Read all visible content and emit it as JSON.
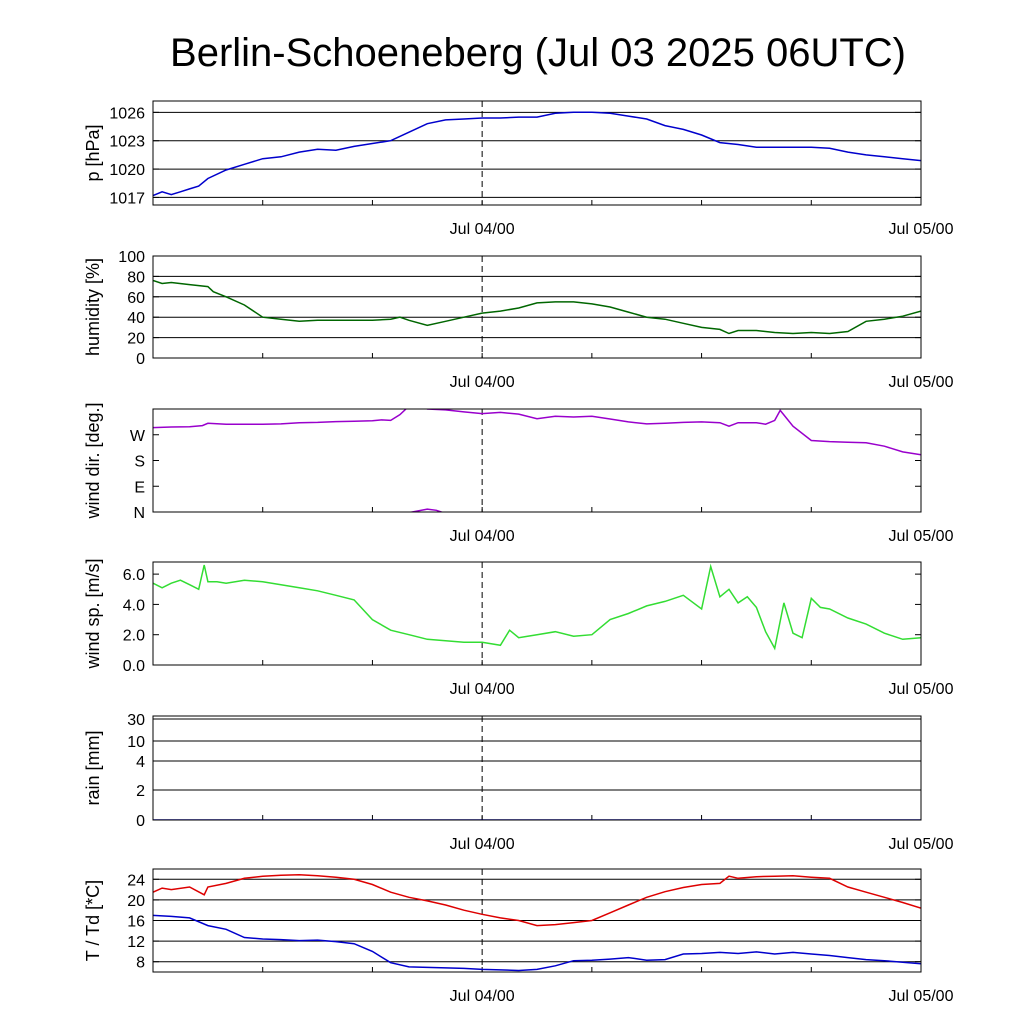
{
  "chart_data": {
    "title": "Berlin-Schoeneberg (Jul 03 2025 06UTC)",
    "x_range_hours": [
      0,
      42
    ],
    "x_tick_labels": [
      {
        "h": 18,
        "label": "Jul 04/00"
      },
      {
        "h": 42,
        "label": "Jul 05/00"
      }
    ],
    "midnight_marker_hour": 18,
    "panels": [
      {
        "id": "pressure",
        "type": "line",
        "ylabel": "p [hPa]",
        "ylim": [
          1016.2,
          1027.2
        ],
        "y_scale": "linear",
        "gridlines": [
          1017,
          1020,
          1023,
          1026
        ],
        "yticks": [
          {
            "v": 1017,
            "label": "1017"
          },
          {
            "v": 1020,
            "label": "1020"
          },
          {
            "v": 1023,
            "label": "1023"
          },
          {
            "v": 1026,
            "label": "1026"
          }
        ],
        "color": "#0000cc",
        "series": [
          {
            "x": [
              0,
              0.5,
              1,
              1.5,
              2,
              2.5,
              3,
              4,
              5,
              6,
              7,
              8,
              9,
              10,
              11,
              12,
              13,
              14,
              15,
              16,
              17,
              18,
              19,
              20,
              21,
              22,
              23,
              24,
              25,
              26,
              27,
              28,
              29,
              30,
              31,
              32,
              33,
              34,
              35,
              36,
              37,
              38,
              39,
              40,
              41,
              42
            ],
            "y": [
              1017.2,
              1017.6,
              1017.3,
              1017.6,
              1017.9,
              1018.2,
              1019.0,
              1019.9,
              1020.5,
              1021.1,
              1021.3,
              1021.8,
              1022.1,
              1022.0,
              1022.4,
              1022.7,
              1023.0,
              1023.9,
              1024.8,
              1025.2,
              1025.3,
              1025.4,
              1025.4,
              1025.5,
              1025.5,
              1025.9,
              1026.0,
              1026.0,
              1025.9,
              1025.6,
              1025.3,
              1024.6,
              1024.2,
              1023.6,
              1022.8,
              1022.6,
              1022.3,
              1022.3,
              1022.3,
              1022.3,
              1022.2,
              1021.8,
              1021.5,
              1021.3,
              1021.1,
              1020.9
            ]
          }
        ]
      },
      {
        "id": "humidity",
        "type": "line",
        "ylabel": "humidity [%]",
        "ylim": [
          0,
          100
        ],
        "y_scale": "linear",
        "gridlines": [
          20,
          40,
          60,
          80,
          100
        ],
        "yticks": [
          {
            "v": 0,
            "label": "0"
          },
          {
            "v": 20,
            "label": "20"
          },
          {
            "v": 40,
            "label": "40"
          },
          {
            "v": 60,
            "label": "60"
          },
          {
            "v": 80,
            "label": "80"
          },
          {
            "v": 100,
            "label": "100"
          }
        ],
        "color": "#006600",
        "series": [
          {
            "x": [
              0,
              0.5,
              1,
              2,
              3,
              3.3,
              4,
              5,
              6,
              7,
              8,
              9,
              10,
              11,
              12,
              13,
              13.5,
              14,
              15,
              16,
              17,
              18,
              19,
              20,
              21,
              22,
              23,
              24,
              25,
              26,
              27,
              28,
              29,
              30,
              31,
              31.5,
              32,
              33,
              34,
              35,
              36,
              37,
              38,
              39,
              40,
              41,
              42
            ],
            "y": [
              76,
              73,
              74,
              72,
              70,
              65,
              60,
              52,
              40,
              38,
              36,
              37,
              37,
              37,
              37,
              38,
              40,
              37,
              32,
              36,
              40,
              44,
              46,
              49,
              54,
              55,
              55,
              53,
              50,
              45,
              40,
              38,
              34,
              30,
              28,
              24,
              27,
              27,
              25,
              24,
              25,
              24,
              26,
              36,
              38,
              41,
              46
            ]
          }
        ]
      },
      {
        "id": "wind_direction",
        "type": "line",
        "ylabel": "wind dir. [deg.]",
        "ylim": [
          0,
          360
        ],
        "y_scale": "linear",
        "gridlines": [],
        "yticks": [
          {
            "v": 0,
            "label": "N"
          },
          {
            "v": 90,
            "label": "E"
          },
          {
            "v": 180,
            "label": "S"
          },
          {
            "v": 270,
            "label": "W"
          }
        ],
        "color": "#9900cc",
        "series": [
          {
            "x": [
              0,
              1,
              2,
              2.7,
              3,
              4,
              5,
              6,
              7,
              8,
              9,
              10,
              11,
              12,
              12.5,
              13,
              13.5,
              14,
              14.5,
              15,
              16,
              17,
              18,
              19,
              20,
              21,
              22,
              23,
              24,
              25,
              26,
              27,
              28,
              29,
              30,
              31,
              31.5,
              32,
              33,
              33.5,
              34,
              34.3,
              35,
              36,
              37,
              38,
              39,
              40,
              41,
              42
            ],
            "y": [
              295,
              297,
              298,
              302,
              310,
              307,
              307,
              307,
              308,
              312,
              313,
              316,
              317,
              319,
              322,
              320,
              340,
              370,
              390,
              360,
              357,
              350,
              344,
              348,
              342,
              326,
              335,
              332,
              335,
              325,
              315,
              308,
              310,
              313,
              315,
              312,
              300,
              312,
              312,
              307,
              320,
              355,
              300,
              250,
              246,
              244,
              242,
              230,
              210,
              200
            ]
          },
          {
            "x": [
              13,
              14,
              15,
              15.5,
              16
            ],
            "y": [
              -5,
              -2,
              10,
              6,
              -5
            ]
          }
        ]
      },
      {
        "id": "wind_speed",
        "type": "line",
        "ylabel": "wind sp. [m/s]",
        "ylim": [
          0,
          6.8
        ],
        "y_scale": "linear",
        "gridlines": [],
        "yticks": [
          {
            "v": 0,
            "label": "0.0"
          },
          {
            "v": 2,
            "label": "2.0"
          },
          {
            "v": 4,
            "label": "4.0"
          },
          {
            "v": 6,
            "label": "6.0"
          }
        ],
        "color": "#33dd33",
        "series": [
          {
            "x": [
              0,
              0.5,
              1,
              1.5,
              2,
              2.5,
              2.8,
              3,
              3.5,
              4,
              5,
              6,
              7,
              8,
              9,
              10,
              11,
              12,
              13,
              14,
              15,
              16,
              17,
              18,
              19,
              19.5,
              20,
              21,
              22,
              23,
              24,
              25,
              26,
              27,
              28,
              29,
              30,
              30.5,
              31,
              31.5,
              32,
              32.5,
              33,
              33.5,
              34,
              34.5,
              35,
              35.5,
              36,
              36.5,
              37,
              38,
              39,
              40,
              41,
              42
            ],
            "y": [
              5.4,
              5.1,
              5.4,
              5.6,
              5.3,
              5.0,
              6.6,
              5.5,
              5.5,
              5.4,
              5.6,
              5.5,
              5.3,
              5.1,
              4.9,
              4.6,
              4.3,
              3.0,
              2.3,
              2.0,
              1.7,
              1.6,
              1.5,
              1.5,
              1.3,
              2.3,
              1.8,
              2.0,
              2.2,
              1.9,
              2.0,
              3.0,
              3.4,
              3.9,
              4.2,
              4.6,
              3.7,
              6.5,
              4.5,
              5.0,
              4.1,
              4.5,
              3.8,
              2.2,
              1.1,
              4.1,
              2.1,
              1.8,
              4.4,
              3.8,
              3.7,
              3.1,
              2.7,
              2.1,
              1.7,
              1.8
            ]
          }
        ]
      },
      {
        "id": "rain",
        "type": "line",
        "ylabel": "rain [mm]",
        "ylim": [
          0,
          30
        ],
        "y_scale": "custom",
        "gridlines": [
          2,
          4,
          10,
          30
        ],
        "yticks": [
          {
            "v": 0,
            "label": "0"
          },
          {
            "v": 2,
            "label": "2"
          },
          {
            "v": 4,
            "label": "4"
          },
          {
            "v": 10,
            "label": "10"
          },
          {
            "v": 30,
            "label": "30"
          }
        ],
        "color": "#0000cc",
        "series": [
          {
            "x": [
              0,
              42
            ],
            "y": [
              0,
              0
            ]
          }
        ]
      },
      {
        "id": "temperature",
        "type": "line",
        "ylabel": "T / Td [*C]",
        "ylim": [
          6,
          26
        ],
        "y_scale": "linear",
        "gridlines": [
          8,
          12,
          16,
          20,
          24
        ],
        "yticks": [
          {
            "v": 8,
            "label": "8"
          },
          {
            "v": 12,
            "label": "12"
          },
          {
            "v": 16,
            "label": "16"
          },
          {
            "v": 20,
            "label": "20"
          },
          {
            "v": 24,
            "label": "24"
          }
        ],
        "series": [
          {
            "color": "#dd0000",
            "x": [
              0,
              0.5,
              1,
              2,
              2.8,
              3,
              4,
              5,
              6,
              7,
              8,
              9,
              10,
              11,
              12,
              13,
              14,
              15,
              16,
              17,
              18,
              19,
              20,
              21,
              22,
              23,
              24,
              25,
              26,
              27,
              28,
              29,
              30,
              31,
              31.5,
              32,
              33,
              34,
              35,
              36,
              37,
              38,
              39,
              40,
              41,
              42
            ],
            "y": [
              21.5,
              22.3,
              22.0,
              22.5,
              21.0,
              22.5,
              23.2,
              24.2,
              24.6,
              24.8,
              24.9,
              24.7,
              24.4,
              24.0,
              23.0,
              21.5,
              20.5,
              19.8,
              19.0,
              18.0,
              17.2,
              16.5,
              16.0,
              15.0,
              15.2,
              15.6,
              16.0,
              17.5,
              19.0,
              20.5,
              21.6,
              22.4,
              23.0,
              23.2,
              24.6,
              24.2,
              24.5,
              24.6,
              24.7,
              24.4,
              24.2,
              22.5,
              21.5,
              20.5,
              19.5,
              18.4
            ]
          },
          {
            "color": "#0000cc",
            "x": [
              0,
              1,
              2,
              3,
              4,
              5,
              6,
              7,
              8,
              9,
              10,
              11,
              12,
              13,
              14,
              15,
              16,
              17,
              18,
              19,
              20,
              21,
              22,
              23,
              24,
              25,
              26,
              27,
              28,
              29,
              30,
              31,
              32,
              33,
              34,
              35,
              36,
              37,
              38,
              39,
              40,
              41,
              42
            ],
            "y": [
              17.0,
              16.8,
              16.5,
              15.0,
              14.3,
              12.7,
              12.4,
              12.3,
              12.1,
              12.2,
              11.9,
              11.5,
              10.0,
              7.8,
              7.0,
              6.9,
              6.8,
              6.7,
              6.5,
              6.4,
              6.3,
              6.5,
              7.2,
              8.2,
              8.3,
              8.5,
              8.8,
              8.3,
              8.4,
              9.5,
              9.6,
              9.8,
              9.6,
              9.9,
              9.5,
              9.8,
              9.5,
              9.2,
              8.8,
              8.4,
              8.2,
              7.9,
              7.6
            ]
          }
        ]
      }
    ]
  }
}
